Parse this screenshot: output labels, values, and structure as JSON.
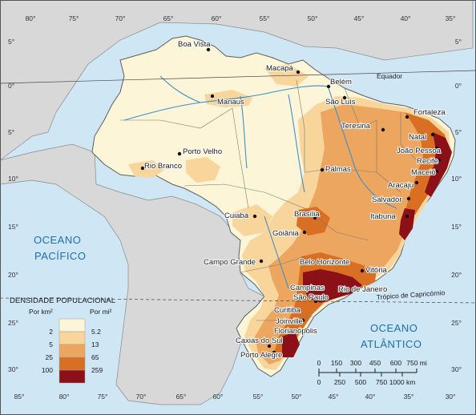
{
  "map": {
    "oceans": {
      "pacific": [
        "OCEANO",
        "PACÍFICO"
      ],
      "atlantic": [
        "OCEANO",
        "ATLÂNTICO"
      ]
    },
    "lines": {
      "equator": "Equador",
      "tropic": "Trópico de Capricórnio"
    },
    "cities": [
      {
        "name": "Boa Vista"
      },
      {
        "name": "Macapá"
      },
      {
        "name": "Belém"
      },
      {
        "name": "Manaus"
      },
      {
        "name": "São Luís"
      },
      {
        "name": "Fortaleza"
      },
      {
        "name": "Teresina"
      },
      {
        "name": "Natal"
      },
      {
        "name": "João Pessoa"
      },
      {
        "name": "Recife"
      },
      {
        "name": "Maceió"
      },
      {
        "name": "Aracaju"
      },
      {
        "name": "Porto Velho"
      },
      {
        "name": "Rio Branco"
      },
      {
        "name": "Palmas"
      },
      {
        "name": "Salvador"
      },
      {
        "name": "Itabuna"
      },
      {
        "name": "Brasília"
      },
      {
        "name": "Cuiabá"
      },
      {
        "name": "Goiânia"
      },
      {
        "name": "Belo Horizonte"
      },
      {
        "name": "Vitória"
      },
      {
        "name": "Campo Grande"
      },
      {
        "name": "Campinas"
      },
      {
        "name": "Rio de Janeiro"
      },
      {
        "name": "São Paulo"
      },
      {
        "name": "Curitiba"
      },
      {
        "name": "Joinville"
      },
      {
        "name": "Florianópolis"
      },
      {
        "name": "Caxias do Sul"
      },
      {
        "name": "Porto Alegre"
      }
    ],
    "longitude_ticks_top": [
      "80°",
      "75°",
      "70°",
      "65°",
      "60°",
      "55°",
      "50°",
      "45°",
      "40°",
      "35°"
    ],
    "longitude_ticks_bottom": [
      "85°",
      "80°",
      "75°",
      "70°",
      "65°",
      "60°",
      "55°",
      "50°",
      "45°",
      "40°",
      "35°",
      "30°"
    ],
    "latitude_ticks_left": [
      "5°",
      "0°",
      "5°",
      "10°",
      "15°",
      "20°",
      "25°",
      "30°"
    ],
    "latitude_ticks_right": [
      "5°",
      "0°",
      "5°",
      "10°",
      "15°",
      "20°",
      "25°",
      "30°"
    ]
  },
  "legend": {
    "title": "DENSIDADE POPULACIONAL",
    "unit_left": "Por km²",
    "unit_right": "Por mi²",
    "classes": [
      {
        "km": "2",
        "mi": "5.2",
        "color": "#fdf5d7"
      },
      {
        "km": "5",
        "mi": "13",
        "color": "#f8d59b"
      },
      {
        "km": "25",
        "mi": "65",
        "color": "#eca65f"
      },
      {
        "km": "100",
        "mi": "259",
        "color": "#d86f22"
      },
      {
        "km": "",
        "mi": "",
        "color": "#8c1018"
      }
    ]
  },
  "scale": {
    "miles": [
      "0",
      "150",
      "300",
      "450",
      "600",
      "750 mi"
    ],
    "km": [
      "0",
      "250",
      "500",
      "750",
      "1000 km"
    ]
  },
  "colors": {
    "ocean": "#cfe6f5",
    "land_other": "#d8d8d8",
    "border": "#6b6b6b",
    "river": "#3d8fcc",
    "water_label": "#1a6fae"
  }
}
